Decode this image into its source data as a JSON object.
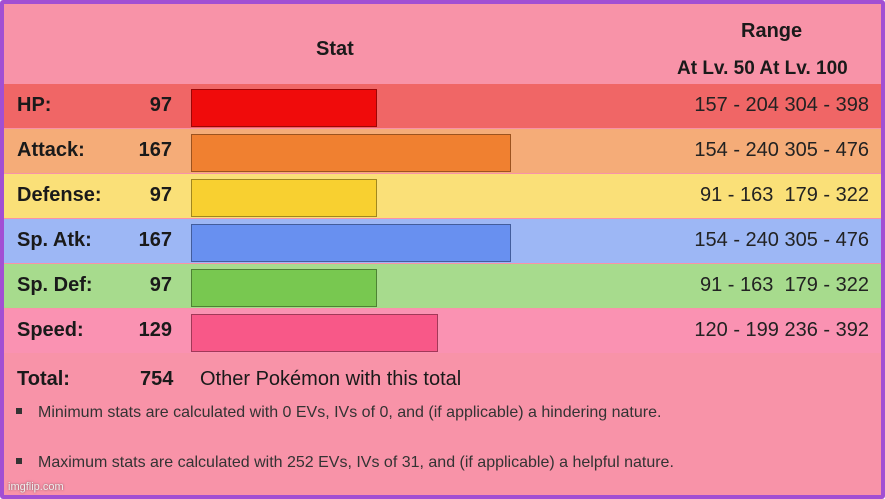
{
  "header": {
    "stat_title": "Stat",
    "range_title": "Range",
    "range_levels": "At Lv. 50 At Lv. 100"
  },
  "chart_data": {
    "type": "bar",
    "categories": [
      "HP:",
      "Attack:",
      "Defense:",
      "Sp. Atk:",
      "Sp. Def:",
      "Speed:"
    ],
    "values": [
      97,
      167,
      97,
      167,
      97,
      129
    ],
    "max_value": 255,
    "colors": [
      "#f00b0b",
      "#f08030",
      "#f8d030",
      "#6890f0",
      "#78c850",
      "#f85888"
    ],
    "row_colors": [
      "#f06666",
      "#f5ac78",
      "#fae078",
      "#9db7f5",
      "#a7db8d",
      "#fa92b2"
    ],
    "ranges": [
      "157 - 204 304 - 398",
      "154 - 240 305 - 476",
      "91 - 163  179 - 322",
      "154 - 240 305 - 476",
      "91 - 163  179 - 322",
      "120 - 199 236 - 392"
    ]
  },
  "total": {
    "label": "Total:",
    "value": "754",
    "link_text": "Other Pokémon with this total"
  },
  "notes": [
    "Minimum stats are calculated with 0 EVs, IVs of 0, and (if applicable) a hindering nature.",
    "Maximum stats are calculated with 252 EVs, IVs of 31, and (if applicable) a helpful nature."
  ],
  "watermark": "imgflip.com",
  "colors": {
    "frame_border": "#a24fd3",
    "background": "#f893a8"
  }
}
